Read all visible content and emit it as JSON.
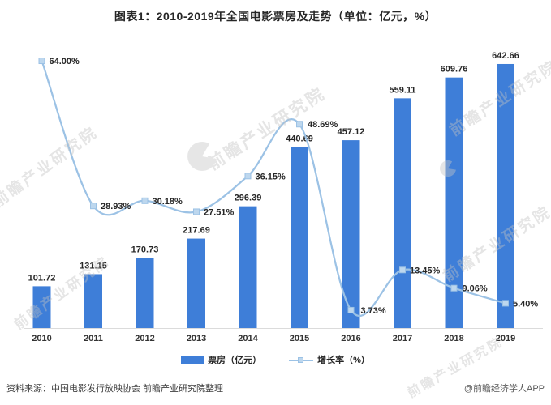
{
  "title": "图表1：2010-2019年全国电影票房及走势（单位：亿元，%）",
  "chart_data": {
    "type": "combo",
    "categories": [
      "2010",
      "2011",
      "2012",
      "2013",
      "2014",
      "2015",
      "2016",
      "2017",
      "2018",
      "2019"
    ],
    "series": [
      {
        "name": "票房（亿元）",
        "type": "bar",
        "color": "#3E7ED8",
        "values": [
          101.72,
          131.15,
          170.73,
          217.69,
          296.39,
          440.69,
          457.12,
          559.11,
          609.76,
          642.66
        ]
      },
      {
        "name": "增长率（%）",
        "type": "line",
        "color": "#9CC2E5",
        "marker_fill": "#BDD7EE",
        "values": [
          64.0,
          28.93,
          30.18,
          27.51,
          36.15,
          48.69,
          3.73,
          13.45,
          9.06,
          5.4
        ]
      }
    ],
    "value_labels": true,
    "grid": false,
    "legend_position": "bottom",
    "ylim_left": [
      0,
      700
    ],
    "ylim_right": [
      0,
      70
    ],
    "axis_color": "#DBDBDB"
  },
  "watermark": {
    "text": "前瞻产业研究院"
  },
  "footer": {
    "source": "资料来源：中国电影发行放映协会 前瞻产业研究院整理",
    "brand": "@前瞻经济学人APP"
  }
}
